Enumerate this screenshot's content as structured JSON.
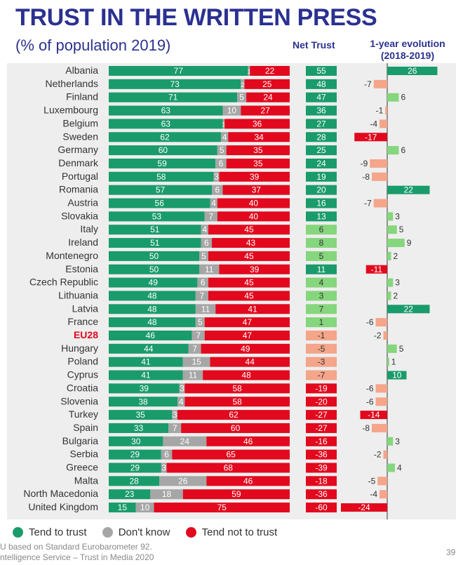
{
  "title": "TRUST IN THE WRITTEN PRESS",
  "subtitle": "(% of population 2019)",
  "net_trust_header": "Net Trust",
  "evolution_header": [
    "1-year evolution",
    "(2018-2019)"
  ],
  "legend": [
    {
      "label": "Tend to trust",
      "color": "#1a9b6c"
    },
    {
      "label": "Don't know",
      "color": "#a6a6a6"
    },
    {
      "label": "Tend not to trust",
      "color": "#e2081d"
    }
  ],
  "footer": [
    "U based on Standard Eurobarometer 92.",
    "ntelligence Service – Trust in Media 2020"
  ],
  "page_number": "39",
  "colors": {
    "trust": "#1a9b6c",
    "dont_know": "#a6a6a6",
    "not_trust": "#e2081d",
    "net_positive_strong": "#1a9b6c",
    "net_positive_light": "#85d67c",
    "net_negative": "#e2081d",
    "net_negative_light": "#f4a58a",
    "eu_label": "#e2081d"
  },
  "chart_data": {
    "type": "bar",
    "stacked": true,
    "categories": [
      "Albania",
      "Netherlands",
      "Finland",
      "Luxembourg",
      "Belgium",
      "Sweden",
      "Germany",
      "Denmark",
      "Portugal",
      "Romania",
      "Austria",
      "Slovakia",
      "Italy",
      "Ireland",
      "Montenegro",
      "Estonia",
      "Czech Republic",
      "Lithuania",
      "Latvia",
      "France",
      "EU28",
      "Hungary",
      "Poland",
      "Cyprus",
      "Croatia",
      "Slovenia",
      "Turkey",
      "Spain",
      "Bulgaria",
      "Serbia",
      "Greece",
      "Malta",
      "North Macedonia",
      "United Kingdom"
    ],
    "series": [
      {
        "name": "Tend to trust",
        "values": [
          77,
          73,
          71,
          63,
          63,
          62,
          60,
          59,
          58,
          57,
          56,
          53,
          51,
          51,
          50,
          50,
          49,
          48,
          48,
          48,
          46,
          44,
          41,
          41,
          39,
          38,
          35,
          33,
          30,
          29,
          29,
          28,
          23,
          15
        ]
      },
      {
        "name": "Don't know",
        "values": [
          1,
          2,
          5,
          10,
          1,
          4,
          5,
          6,
          3,
          6,
          4,
          7,
          4,
          6,
          5,
          11,
          6,
          7,
          11,
          5,
          7,
          7,
          15,
          11,
          3,
          4,
          3,
          7,
          24,
          6,
          3,
          26,
          18,
          10
        ]
      },
      {
        "name": "Tend not to trust",
        "values": [
          22,
          25,
          24,
          27,
          36,
          34,
          35,
          35,
          39,
          37,
          40,
          40,
          45,
          43,
          45,
          39,
          45,
          45,
          41,
          47,
          47,
          49,
          44,
          48,
          58,
          58,
          62,
          60,
          46,
          65,
          68,
          46,
          59,
          75
        ]
      }
    ],
    "net_trust": [
      55,
      48,
      47,
      36,
      27,
      28,
      25,
      24,
      19,
      20,
      16,
      13,
      6,
      8,
      5,
      11,
      4,
      3,
      7,
      1,
      -1,
      -5,
      -3,
      -7,
      -19,
      -20,
      -27,
      -27,
      -16,
      -36,
      -39,
      -18,
      -36,
      -60
    ],
    "evolution": [
      26,
      -7,
      6,
      -1,
      -4,
      -17,
      6,
      -9,
      -8,
      22,
      -7,
      3,
      5,
      9,
      2,
      -11,
      3,
      2,
      22,
      -6,
      -2,
      5,
      1,
      10,
      -6,
      -6,
      -14,
      -8,
      3,
      -2,
      4,
      -5,
      -4,
      -24
    ],
    "highlight_category": "EU28",
    "xlim": [
      0,
      100
    ]
  }
}
